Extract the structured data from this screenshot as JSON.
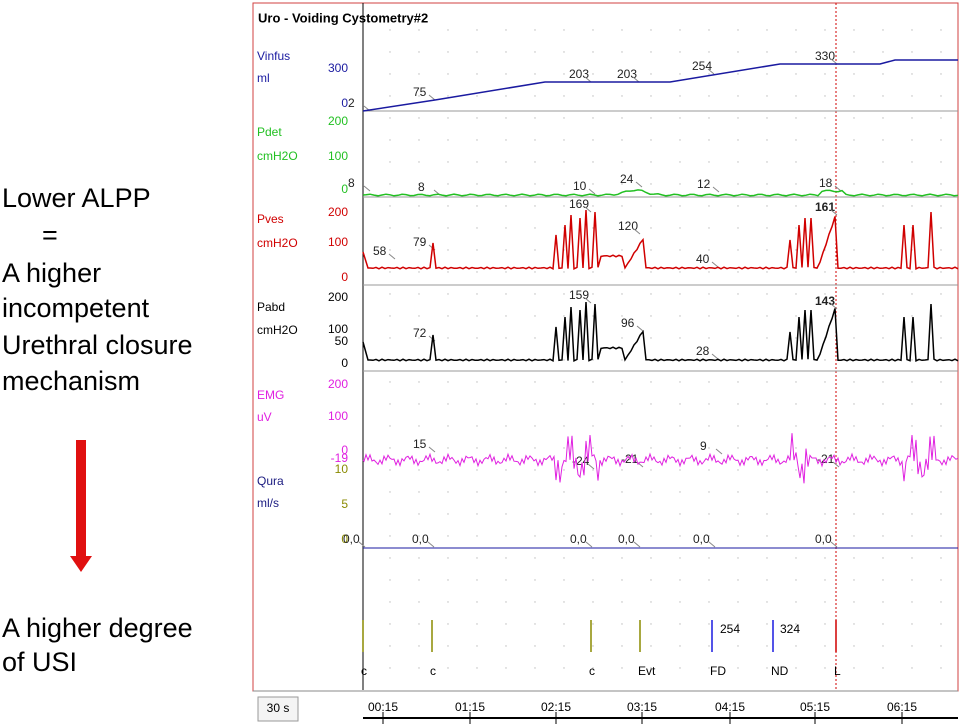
{
  "slide": {
    "left_text": [
      "Lower ALPP",
      "=",
      "A  higher",
      "incompetent",
      "Urethral closure",
      "mechanism"
    ],
    "bottom_text": [
      "A higher degree",
      "of  USI"
    ]
  },
  "window": {
    "title": "Uro - Voiding Cystometry#2",
    "channels": [
      {
        "name": "Vinfus",
        "unit": "ml",
        "ticks": [
          "300",
          "0"
        ],
        "annotations": [
          "2",
          "75",
          "203",
          "203",
          "254",
          "330"
        ]
      },
      {
        "name": "Pdet",
        "unit": "cmH2O",
        "ticks": [
          "200",
          "100",
          "0"
        ],
        "annotations": [
          "8",
          "8",
          "10",
          "24",
          "12",
          "18"
        ]
      },
      {
        "name": "Pves",
        "unit": "cmH2O",
        "ticks": [
          "200",
          "100",
          "0"
        ],
        "annotations": [
          "58",
          "79",
          "169",
          "120",
          "40",
          "161"
        ]
      },
      {
        "name": "Pabd",
        "unit": "cmH2O",
        "ticks": [
          "200",
          "100",
          "50",
          "0"
        ],
        "annotations": [
          "72",
          "159",
          "96",
          "28",
          "143"
        ]
      },
      {
        "name": "EMG",
        "unit": "uV",
        "ticks": [
          "200",
          "100",
          "0",
          "-19"
        ],
        "annotations": [
          "15",
          "-24",
          "-21",
          "9",
          "-21"
        ]
      },
      {
        "name": "Qura",
        "unit": "ml/s",
        "ticks": [
          "10",
          "5",
          "0"
        ],
        "annotations": [
          "0,0",
          "0,0",
          "0,0",
          "0,0",
          "0,0",
          "0,0"
        ]
      }
    ],
    "events": [
      "c",
      "c",
      "c",
      "Evt",
      "FD",
      "ND",
      "L"
    ],
    "event_values": [
      "254",
      "324"
    ],
    "time_scale": "30 s",
    "time_labels": [
      "00:15",
      "01:15",
      "02:15",
      "03:15",
      "04:15",
      "05:15",
      "06:15"
    ]
  }
}
